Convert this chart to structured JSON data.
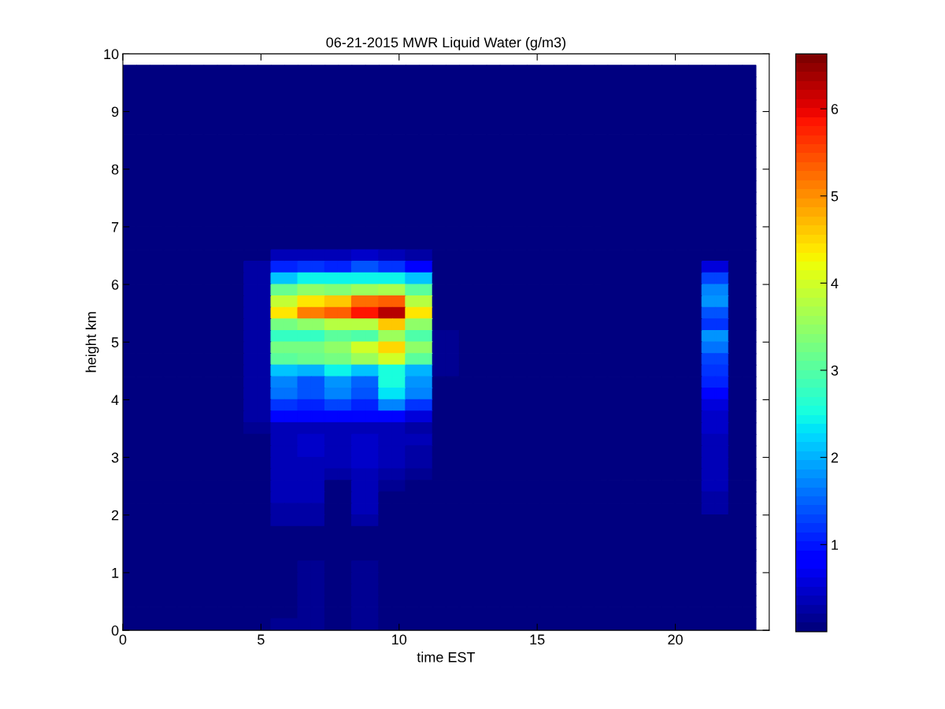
{
  "chart_data": {
    "type": "heatmap",
    "title": "06-21-2015 MWR Liquid Water (g/m3)",
    "xlabel": "time EST",
    "ylabel": "height km",
    "x": [
      0.24,
      0.73,
      1.22,
      1.71,
      2.19,
      2.68,
      3.17,
      3.66,
      4.14,
      4.63,
      5.12,
      5.61,
      6.09,
      6.58,
      7.07,
      7.56,
      8.04,
      8.53,
      9.02,
      9.51,
      9.99,
      10.48,
      10.97,
      11.46,
      11.94,
      12.43,
      12.92,
      13.41,
      13.89,
      14.38,
      14.87,
      15.36,
      15.84,
      16.33,
      16.82,
      17.31,
      17.79,
      18.28,
      18.77,
      19.26,
      19.74,
      20.23,
      20.72,
      21.21,
      21.69,
      22.18,
      22.67
    ],
    "y": [
      9.7,
      9.5,
      9.3,
      9.1,
      8.9,
      8.7,
      8.5,
      8.3,
      8.1,
      7.9,
      7.7,
      7.5,
      7.3,
      7.1,
      6.9,
      6.7,
      6.5,
      6.3,
      6.1,
      5.9,
      5.7,
      5.5,
      5.3,
      5.1,
      4.9,
      4.7,
      4.5,
      4.3,
      4.1,
      3.9,
      3.7,
      3.5,
      3.3,
      3.1,
      2.9,
      2.7,
      2.5,
      2.3,
      2.1,
      1.9,
      1.7,
      1.5,
      1.3,
      1.1,
      0.9,
      0.7,
      0.5,
      0.3,
      0.1
    ],
    "cells": [
      [
        0.1,
        0.1,
        0.1,
        0.1,
        0.1,
        0.1,
        0.1,
        0.1,
        0.1,
        0.1,
        0.1,
        0.1,
        0.1,
        0.1,
        0.1,
        0.1,
        0.1,
        0.1,
        0.1,
        0.1,
        0.1,
        0.1,
        0.1,
        0.1,
        0.1,
        0.1,
        0.1,
        0.1,
        0.1,
        0.1,
        0.1,
        0.1,
        0.1,
        0.1,
        0.1,
        0.1,
        0.1,
        0.1,
        0.1,
        0.1,
        0.1,
        0.1,
        0.1,
        0.1,
        0.1,
        0.1,
        0.1
      ],
      [
        0.1,
        0.1,
        0.1,
        0.1,
        0.1,
        0.1,
        0.1,
        0.1,
        0.1,
        0.1,
        0.1,
        0.1,
        0.1,
        0.1,
        0.1,
        0.1,
        0.1,
        0.1,
        0.1,
        0.1,
        0.1,
        0.1,
        0.1,
        0.1,
        0.1,
        0.1,
        0.1,
        0.1,
        0.1,
        0.1,
        0.1,
        0.1,
        0.1,
        0.1,
        0.1,
        0.1,
        0.1,
        0.1,
        0.1,
        0.1,
        0.1,
        0.1,
        0.1,
        0.1,
        0.1,
        0.1,
        0.1
      ],
      [
        0.1,
        0.1,
        0.1,
        0.1,
        0.1,
        0.1,
        0.1,
        0.1,
        0.1,
        0.1,
        0.1,
        0.1,
        0.1,
        0.1,
        0.1,
        0.1,
        0.1,
        0.1,
        0.1,
        0.1,
        0.1,
        0.1,
        0.1,
        0.1,
        0.1,
        0.1,
        0.1,
        0.1,
        0.1,
        0.1,
        0.1,
        0.1,
        0.1,
        0.1,
        0.1,
        0.1,
        0.1,
        0.1,
        0.1,
        0.1,
        0.1,
        0.1,
        0.1,
        0.1,
        0.1,
        0.1,
        0.1
      ],
      [
        0.1,
        0.1,
        0.1,
        0.1,
        0.1,
        0.1,
        0.1,
        0.1,
        0.1,
        0.1,
        0.1,
        0.1,
        0.1,
        0.1,
        0.1,
        0.1,
        0.1,
        0.1,
        0.1,
        0.1,
        0.1,
        0.1,
        0.1,
        0.1,
        0.1,
        0.1,
        0.1,
        0.1,
        0.1,
        0.1,
        0.1,
        0.1,
        0.1,
        0.1,
        0.1,
        0.1,
        0.1,
        0.1,
        0.1,
        0.1,
        0.1,
        0.1,
        0.1,
        0.1,
        0.1,
        0.1,
        0.1
      ],
      [
        0.1,
        0.1,
        0.1,
        0.1,
        0.1,
        0.1,
        0.1,
        0.1,
        0.1,
        0.1,
        0.1,
        0.1,
        0.1,
        0.1,
        0.1,
        0.1,
        0.1,
        0.1,
        0.1,
        0.1,
        0.1,
        0.1,
        0.1,
        0.1,
        0.1,
        0.1,
        0.1,
        0.1,
        0.1,
        0.1,
        0.1,
        0.1,
        0.1,
        0.1,
        0.1,
        0.1,
        0.1,
        0.1,
        0.1,
        0.1,
        0.1,
        0.1,
        0.1,
        0.1,
        0.1,
        0.1,
        0.1
      ],
      [
        0.1,
        0.1,
        0.1,
        0.1,
        0.1,
        0.1,
        0.1,
        0.1,
        0.1,
        0.1,
        0.1,
        0.1,
        0.1,
        0.1,
        0.1,
        0.1,
        0.1,
        0.1,
        0.1,
        0.1,
        0.1,
        0.1,
        0.1,
        0.1,
        0.1,
        0.1,
        0.1,
        0.1,
        0.1,
        0.1,
        0.1,
        0.1,
        0.1,
        0.1,
        0.1,
        0.1,
        0.1,
        0.1,
        0.1,
        0.1,
        0.1,
        0.1,
        0.1,
        0.1,
        0.1,
        0.1,
        0.1
      ],
      [
        0.1,
        0.1,
        0.1,
        0.1,
        0.1,
        0.1,
        0.1,
        0.1,
        0.1,
        0.1,
        0.1,
        0.1,
        0.1,
        0.1,
        0.1,
        0.1,
        0.1,
        0.1,
        0.1,
        0.1,
        0.1,
        0.1,
        0.1,
        0.1,
        0.1,
        0.1,
        0.1,
        0.1,
        0.1,
        0.1,
        0.1,
        0.1,
        0.1,
        0.1,
        0.1,
        0.1,
        0.1,
        0.1,
        0.1,
        0.1,
        0.1,
        0.1,
        0.1,
        0.1,
        0.1,
        0.1,
        0.1
      ],
      [
        0.1,
        0.1,
        0.1,
        0.1,
        0.1,
        0.1,
        0.1,
        0.1,
        0.1,
        0.1,
        0.1,
        0.1,
        0.1,
        0.1,
        0.1,
        0.1,
        0.1,
        0.1,
        0.1,
        0.1,
        0.1,
        0.1,
        0.1,
        0.1,
        0.1,
        0.1,
        0.1,
        0.1,
        0.1,
        0.1,
        0.1,
        0.1,
        0.1,
        0.1,
        0.1,
        0.1,
        0.1,
        0.1,
        0.1,
        0.1,
        0.1,
        0.1,
        0.1,
        0.1,
        0.1,
        0.1,
        0.1
      ],
      [
        0.1,
        0.1,
        0.1,
        0.1,
        0.1,
        0.1,
        0.1,
        0.1,
        0.1,
        0.1,
        0.1,
        0.1,
        0.1,
        0.1,
        0.1,
        0.1,
        0.1,
        0.1,
        0.1,
        0.1,
        0.1,
        0.1,
        0.1,
        0.1,
        0.1,
        0.1,
        0.1,
        0.1,
        0.1,
        0.1,
        0.1,
        0.1,
        0.1,
        0.1,
        0.1,
        0.1,
        0.1,
        0.1,
        0.1,
        0.1,
        0.1,
        0.1,
        0.1,
        0.1,
        0.1,
        0.1,
        0.1
      ],
      [
        0.1,
        0.1,
        0.1,
        0.1,
        0.1,
        0.1,
        0.1,
        0.1,
        0.1,
        0.1,
        0.1,
        0.1,
        0.1,
        0.1,
        0.1,
        0.1,
        0.1,
        0.1,
        0.1,
        0.1,
        0.1,
        0.1,
        0.1,
        0.1,
        0.1,
        0.1,
        0.1,
        0.1,
        0.1,
        0.1,
        0.1,
        0.1,
        0.1,
        0.1,
        0.1,
        0.1,
        0.1,
        0.1,
        0.1,
        0.1,
        0.1,
        0.1,
        0.1,
        0.1,
        0.1,
        0.1,
        0.1
      ],
      [
        0.1,
        0.1,
        0.1,
        0.1,
        0.1,
        0.1,
        0.1,
        0.1,
        0.1,
        0.1,
        0.1,
        0.1,
        0.1,
        0.1,
        0.1,
        0.1,
        0.1,
        0.1,
        0.1,
        0.1,
        0.1,
        0.1,
        0.1,
        0.1,
        0.1,
        0.1,
        0.1,
        0.1,
        0.1,
        0.1,
        0.1,
        0.1,
        0.1,
        0.1,
        0.1,
        0.1,
        0.1,
        0.1,
        0.1,
        0.1,
        0.1,
        0.1,
        0.1,
        0.1,
        0.1,
        0.1,
        0.1
      ],
      [
        0.1,
        0.1,
        0.1,
        0.1,
        0.1,
        0.1,
        0.1,
        0.1,
        0.1,
        0.1,
        0.1,
        0.1,
        0.1,
        0.1,
        0.1,
        0.1,
        0.1,
        0.1,
        0.1,
        0.1,
        0.1,
        0.1,
        0.1,
        0.1,
        0.1,
        0.1,
        0.1,
        0.1,
        0.1,
        0.1,
        0.1,
        0.1,
        0.1,
        0.1,
        0.1,
        0.1,
        0.1,
        0.1,
        0.1,
        0.1,
        0.1,
        0.1,
        0.1,
        0.1,
        0.1,
        0.1,
        0.1
      ],
      [
        0.1,
        0.1,
        0.1,
        0.1,
        0.1,
        0.1,
        0.1,
        0.1,
        0.1,
        0.1,
        0.1,
        0.1,
        0.1,
        0.1,
        0.1,
        0.1,
        0.1,
        0.1,
        0.1,
        0.1,
        0.1,
        0.1,
        0.1,
        0.1,
        0.1,
        0.1,
        0.1,
        0.1,
        0.1,
        0.1,
        0.1,
        0.1,
        0.1,
        0.1,
        0.1,
        0.1,
        0.1,
        0.1,
        0.1,
        0.1,
        0.1,
        0.1,
        0.1,
        0.1,
        0.1,
        0.1,
        0.1
      ],
      [
        0.1,
        0.1,
        0.1,
        0.1,
        0.1,
        0.1,
        0.1,
        0.1,
        0.1,
        0.1,
        0.1,
        0.1,
        0.1,
        0.1,
        0.1,
        0.1,
        0.1,
        0.1,
        0.1,
        0.1,
        0.1,
        0.1,
        0.1,
        0.1,
        0.1,
        0.1,
        0.1,
        0.1,
        0.1,
        0.1,
        0.1,
        0.1,
        0.1,
        0.1,
        0.1,
        0.1,
        0.1,
        0.1,
        0.1,
        0.1,
        0.1,
        0.1,
        0.1,
        0.1,
        0.1,
        0.1,
        0.1
      ],
      [
        0.1,
        0.1,
        0.1,
        0.1,
        0.1,
        0.1,
        0.1,
        0.1,
        0.1,
        0.1,
        0.1,
        0.1,
        0.1,
        0.1,
        0.1,
        0.1,
        0.1,
        0.1,
        0.1,
        0.1,
        0.1,
        0.1,
        0.1,
        0.1,
        0.1,
        0.1,
        0.1,
        0.1,
        0.1,
        0.1,
        0.1,
        0.1,
        0.1,
        0.1,
        0.1,
        0.1,
        0.1,
        0.1,
        0.1,
        0.1,
        0.1,
        0.1,
        0.1,
        0.1,
        0.1,
        0.1,
        0.1
      ],
      [
        0.1,
        0.1,
        0.1,
        0.1,
        0.1,
        0.1,
        0.1,
        0.1,
        0.1,
        0.1,
        0.1,
        0.1,
        0.1,
        0.1,
        0.1,
        0.1,
        0.1,
        0.1,
        0.1,
        0.1,
        0.1,
        0.1,
        0.1,
        0.1,
        0.1,
        0.1,
        0.1,
        0.1,
        0.1,
        0.1,
        0.1,
        0.1,
        0.1,
        0.1,
        0.1,
        0.1,
        0.1,
        0.1,
        0.1,
        0.1,
        0.1,
        0.1,
        0.1,
        0.1,
        0.1,
        0.1,
        0.1
      ],
      [
        0.1,
        0.1,
        0.1,
        0.1,
        0.1,
        0.1,
        0.1,
        0.1,
        0.1,
        0.1,
        0.1,
        0.35,
        0.35,
        0.35,
        0.35,
        0.35,
        0.35,
        0.45,
        0.45,
        0.35,
        0.35,
        0.3,
        0.3,
        0.1,
        0.1,
        0.1,
        0.1,
        0.1,
        0.1,
        0.1,
        0.1,
        0.1,
        0.1,
        0.1,
        0.1,
        0.1,
        0.1,
        0.1,
        0.1,
        0.1,
        0.1,
        0.1,
        0.1,
        0.1,
        0.1,
        0.1,
        0.1
      ],
      [
        0.1,
        0.1,
        0.1,
        0.1,
        0.1,
        0.1,
        0.1,
        0.1,
        0.1,
        0.25,
        0.25,
        1.1,
        1.1,
        1.2,
        1.2,
        1.05,
        1.05,
        1.4,
        1.4,
        1.15,
        1.15,
        0.8,
        0.8,
        0.1,
        0.1,
        0.1,
        0.1,
        0.1,
        0.1,
        0.1,
        0.1,
        0.1,
        0.1,
        0.1,
        0.1,
        0.1,
        0.1,
        0.1,
        0.1,
        0.1,
        0.1,
        0.1,
        0.1,
        0.6,
        0.6,
        0.1,
        0.1
      ],
      [
        0.1,
        0.1,
        0.1,
        0.1,
        0.1,
        0.1,
        0.1,
        0.1,
        0.1,
        0.25,
        0.25,
        2.15,
        2.15,
        2.45,
        2.45,
        2.45,
        2.45,
        2.45,
        2.45,
        2.45,
        2.45,
        2.1,
        2.1,
        0.1,
        0.1,
        0.1,
        0.1,
        0.1,
        0.1,
        0.1,
        0.1,
        0.1,
        0.1,
        0.1,
        0.1,
        0.1,
        0.1,
        0.1,
        0.1,
        0.1,
        0.1,
        0.1,
        0.1,
        1.3,
        1.3,
        0.1,
        0.1
      ],
      [
        0.1,
        0.1,
        0.1,
        0.1,
        0.1,
        0.1,
        0.1,
        0.1,
        0.1,
        0.25,
        0.25,
        3.15,
        3.15,
        3.45,
        3.45,
        3.35,
        3.35,
        3.55,
        3.55,
        3.65,
        3.65,
        3.05,
        3.05,
        0.1,
        0.1,
        0.1,
        0.1,
        0.1,
        0.1,
        0.1,
        0.1,
        0.1,
        0.1,
        0.1,
        0.1,
        0.1,
        0.1,
        0.1,
        0.1,
        0.1,
        0.1,
        0.1,
        0.1,
        1.7,
        1.7,
        0.1,
        0.1
      ],
      [
        0.1,
        0.1,
        0.1,
        0.1,
        0.1,
        0.1,
        0.1,
        0.1,
        0.1,
        0.25,
        0.25,
        3.85,
        3.85,
        4.45,
        4.45,
        4.6,
        4.6,
        5.25,
        5.25,
        5.3,
        5.3,
        3.75,
        3.75,
        0.1,
        0.1,
        0.1,
        0.1,
        0.1,
        0.1,
        0.1,
        0.1,
        0.1,
        0.1,
        0.1,
        0.1,
        0.1,
        0.1,
        0.1,
        0.1,
        0.1,
        0.1,
        0.1,
        0.1,
        1.8,
        1.8,
        0.1,
        0.1
      ],
      [
        0.1,
        0.1,
        0.1,
        0.1,
        0.1,
        0.1,
        0.1,
        0.1,
        0.1,
        0.25,
        0.25,
        4.45,
        4.45,
        5.1,
        5.1,
        5.35,
        5.35,
        5.85,
        5.85,
        6.25,
        6.25,
        4.4,
        4.4,
        0.1,
        0.1,
        0.1,
        0.1,
        0.1,
        0.1,
        0.1,
        0.1,
        0.1,
        0.1,
        0.1,
        0.1,
        0.1,
        0.1,
        0.1,
        0.1,
        0.1,
        0.1,
        0.1,
        0.1,
        1.45,
        1.45,
        0.1,
        0.1
      ],
      [
        0.1,
        0.1,
        0.1,
        0.1,
        0.1,
        0.1,
        0.1,
        0.1,
        0.1,
        0.25,
        0.25,
        3.3,
        3.3,
        3.5,
        3.5,
        3.75,
        3.75,
        3.75,
        3.75,
        4.6,
        4.6,
        3.5,
        3.5,
        0.1,
        0.1,
        0.1,
        0.1,
        0.1,
        0.1,
        0.1,
        0.1,
        0.1,
        0.1,
        0.1,
        0.1,
        0.1,
        0.1,
        0.1,
        0.1,
        0.1,
        0.1,
        0.1,
        0.1,
        1.2,
        1.2,
        0.1,
        0.1
      ],
      [
        0.1,
        0.1,
        0.1,
        0.1,
        0.1,
        0.1,
        0.1,
        0.1,
        0.1,
        0.25,
        0.25,
        2.7,
        2.7,
        2.7,
        2.7,
        3.1,
        3.1,
        2.95,
        2.95,
        3.6,
        3.6,
        2.95,
        2.95,
        0.2,
        0.2,
        0.1,
        0.1,
        0.1,
        0.1,
        0.1,
        0.1,
        0.1,
        0.1,
        0.1,
        0.1,
        0.1,
        0.1,
        0.1,
        0.1,
        0.1,
        0.1,
        0.1,
        0.1,
        1.8,
        1.8,
        0.1,
        0.1
      ],
      [
        0.1,
        0.1,
        0.1,
        0.1,
        0.1,
        0.1,
        0.1,
        0.1,
        0.1,
        0.25,
        0.25,
        3.25,
        3.25,
        3.25,
        3.25,
        3.45,
        3.45,
        3.95,
        3.95,
        4.5,
        4.5,
        3.45,
        3.45,
        0.2,
        0.2,
        0.1,
        0.1,
        0.1,
        0.1,
        0.1,
        0.1,
        0.1,
        0.1,
        0.1,
        0.1,
        0.1,
        0.1,
        0.1,
        0.1,
        0.1,
        0.1,
        0.1,
        0.1,
        1.6,
        1.6,
        0.1,
        0.1
      ],
      [
        0.1,
        0.1,
        0.1,
        0.1,
        0.1,
        0.1,
        0.1,
        0.1,
        0.1,
        0.25,
        0.25,
        3.1,
        3.1,
        3.2,
        3.2,
        3.3,
        3.3,
        3.6,
        3.6,
        4.0,
        4.0,
        3.1,
        3.1,
        0.2,
        0.2,
        0.1,
        0.1,
        0.1,
        0.1,
        0.1,
        0.1,
        0.1,
        0.1,
        0.1,
        0.1,
        0.1,
        0.1,
        0.1,
        0.1,
        0.1,
        0.1,
        0.1,
        0.1,
        1.3,
        1.3,
        0.1,
        0.1
      ],
      [
        0.1,
        0.1,
        0.1,
        0.1,
        0.1,
        0.1,
        0.1,
        0.1,
        0.1,
        0.25,
        0.25,
        2.15,
        2.15,
        2.05,
        2.05,
        2.4,
        2.4,
        2.1,
        2.1,
        2.5,
        2.5,
        2.0,
        2.0,
        0.15,
        0.15,
        0.1,
        0.1,
        0.1,
        0.1,
        0.1,
        0.1,
        0.1,
        0.1,
        0.1,
        0.1,
        0.1,
        0.1,
        0.1,
        0.1,
        0.1,
        0.1,
        0.1,
        0.1,
        1.15,
        1.15,
        0.1,
        0.1
      ],
      [
        0.1,
        0.1,
        0.1,
        0.1,
        0.1,
        0.1,
        0.1,
        0.1,
        0.1,
        0.25,
        0.25,
        1.7,
        1.7,
        1.45,
        1.45,
        1.85,
        1.85,
        1.55,
        1.55,
        2.5,
        2.5,
        1.85,
        1.85,
        0.1,
        0.1,
        0.1,
        0.1,
        0.1,
        0.1,
        0.1,
        0.1,
        0.1,
        0.1,
        0.1,
        0.1,
        0.1,
        0.1,
        0.1,
        0.1,
        0.1,
        0.1,
        0.1,
        0.1,
        1.05,
        1.05,
        0.1,
        0.1
      ],
      [
        0.1,
        0.1,
        0.1,
        0.1,
        0.1,
        0.1,
        0.1,
        0.1,
        0.1,
        0.25,
        0.25,
        1.65,
        1.65,
        1.4,
        1.4,
        1.75,
        1.75,
        1.45,
        1.45,
        2.35,
        2.35,
        1.75,
        1.75,
        0.1,
        0.1,
        0.1,
        0.1,
        0.1,
        0.1,
        0.1,
        0.1,
        0.1,
        0.1,
        0.1,
        0.1,
        0.1,
        0.1,
        0.1,
        0.1,
        0.1,
        0.1,
        0.1,
        0.1,
        0.85,
        0.85,
        0.1,
        0.1
      ],
      [
        0.1,
        0.1,
        0.1,
        0.1,
        0.1,
        0.1,
        0.1,
        0.1,
        0.1,
        0.25,
        0.25,
        1.2,
        1.2,
        1.1,
        1.1,
        1.25,
        1.25,
        1.1,
        1.1,
        1.7,
        1.7,
        1.15,
        1.15,
        0.1,
        0.1,
        0.1,
        0.1,
        0.1,
        0.1,
        0.1,
        0.1,
        0.1,
        0.1,
        0.1,
        0.1,
        0.1,
        0.1,
        0.1,
        0.1,
        0.1,
        0.1,
        0.1,
        0.1,
        0.6,
        0.6,
        0.1,
        0.1
      ],
      [
        0.1,
        0.1,
        0.1,
        0.1,
        0.1,
        0.1,
        0.1,
        0.1,
        0.1,
        0.25,
        0.25,
        0.85,
        0.85,
        0.85,
        0.85,
        0.85,
        0.85,
        0.85,
        0.85,
        0.9,
        0.9,
        0.6,
        0.6,
        0.1,
        0.1,
        0.1,
        0.1,
        0.1,
        0.1,
        0.1,
        0.1,
        0.1,
        0.1,
        0.1,
        0.1,
        0.1,
        0.1,
        0.1,
        0.1,
        0.1,
        0.1,
        0.1,
        0.1,
        0.5,
        0.5,
        0.1,
        0.1
      ],
      [
        0.1,
        0.1,
        0.1,
        0.1,
        0.1,
        0.1,
        0.1,
        0.1,
        0.1,
        0.15,
        0.15,
        0.4,
        0.4,
        0.4,
        0.4,
        0.4,
        0.4,
        0.4,
        0.4,
        0.4,
        0.4,
        0.3,
        0.3,
        0.1,
        0.1,
        0.1,
        0.1,
        0.1,
        0.1,
        0.1,
        0.1,
        0.1,
        0.1,
        0.1,
        0.1,
        0.1,
        0.1,
        0.1,
        0.1,
        0.1,
        0.1,
        0.1,
        0.1,
        0.45,
        0.45,
        0.1,
        0.1
      ],
      [
        0.1,
        0.1,
        0.1,
        0.1,
        0.1,
        0.1,
        0.1,
        0.1,
        0.1,
        0.1,
        0.1,
        0.4,
        0.4,
        0.45,
        0.45,
        0.4,
        0.4,
        0.45,
        0.45,
        0.4,
        0.4,
        0.35,
        0.35,
        0.1,
        0.1,
        0.1,
        0.1,
        0.1,
        0.1,
        0.1,
        0.1,
        0.1,
        0.1,
        0.1,
        0.1,
        0.1,
        0.1,
        0.1,
        0.1,
        0.1,
        0.1,
        0.1,
        0.1,
        0.4,
        0.4,
        0.1,
        0.1
      ],
      [
        0.1,
        0.1,
        0.1,
        0.1,
        0.1,
        0.1,
        0.1,
        0.1,
        0.1,
        0.1,
        0.1,
        0.4,
        0.4,
        0.45,
        0.45,
        0.4,
        0.4,
        0.45,
        0.45,
        0.35,
        0.35,
        0.3,
        0.3,
        0.1,
        0.1,
        0.1,
        0.1,
        0.1,
        0.1,
        0.1,
        0.1,
        0.1,
        0.1,
        0.1,
        0.1,
        0.1,
        0.1,
        0.1,
        0.1,
        0.1,
        0.1,
        0.1,
        0.1,
        0.4,
        0.4,
        0.1,
        0.1
      ],
      [
        0.1,
        0.1,
        0.1,
        0.1,
        0.1,
        0.1,
        0.1,
        0.1,
        0.1,
        0.1,
        0.1,
        0.4,
        0.4,
        0.4,
        0.4,
        0.35,
        0.35,
        0.45,
        0.45,
        0.35,
        0.35,
        0.3,
        0.3,
        0.1,
        0.1,
        0.1,
        0.1,
        0.1,
        0.1,
        0.1,
        0.1,
        0.1,
        0.1,
        0.1,
        0.1,
        0.1,
        0.1,
        0.1,
        0.1,
        0.1,
        0.1,
        0.1,
        0.1,
        0.35,
        0.35,
        0.1,
        0.1
      ],
      [
        0.1,
        0.1,
        0.1,
        0.1,
        0.1,
        0.1,
        0.1,
        0.1,
        0.1,
        0.1,
        0.1,
        0.35,
        0.35,
        0.4,
        0.4,
        0.3,
        0.3,
        0.4,
        0.4,
        0.3,
        0.3,
        0.2,
        0.2,
        0.1,
        0.1,
        0.1,
        0.1,
        0.1,
        0.1,
        0.1,
        0.1,
        0.1,
        0.1,
        0.1,
        0.1,
        0.1,
        0.1,
        0.1,
        0.1,
        0.1,
        0.1,
        0.1,
        0.1,
        0.35,
        0.35,
        0.1,
        0.1
      ],
      [
        0.1,
        0.1,
        0.1,
        0.1,
        0.1,
        0.1,
        0.1,
        0.1,
        0.1,
        0.1,
        0.1,
        0.35,
        0.35,
        0.35,
        0.35,
        0.1,
        0.1,
        0.4,
        0.4,
        0.2,
        0.2,
        0.1,
        0.1,
        0.1,
        0.1,
        0.1,
        0.1,
        0.1,
        0.1,
        0.1,
        0.1,
        0.1,
        0.1,
        0.1,
        0.1,
        0.1,
        0.1,
        0.1,
        0.1,
        0.1,
        0.1,
        0.1,
        0.1,
        0.35,
        0.35,
        0.1,
        0.1
      ],
      [
        0.1,
        0.1,
        0.1,
        0.1,
        0.1,
        0.1,
        0.1,
        0.1,
        0.1,
        0.1,
        0.1,
        0.35,
        0.35,
        0.35,
        0.35,
        0.1,
        0.1,
        0.35,
        0.35,
        0.1,
        0.1,
        0.1,
        0.1,
        0.1,
        0.1,
        0.1,
        0.1,
        0.1,
        0.1,
        0.1,
        0.1,
        0.1,
        0.1,
        0.1,
        0.1,
        0.1,
        0.1,
        0.1,
        0.1,
        0.1,
        0.1,
        0.1,
        0.1,
        0.3,
        0.3,
        0.1,
        0.1
      ],
      [
        0.1,
        0.1,
        0.1,
        0.1,
        0.1,
        0.1,
        0.1,
        0.1,
        0.1,
        0.1,
        0.1,
        0.3,
        0.3,
        0.3,
        0.3,
        0.1,
        0.1,
        0.35,
        0.35,
        0.1,
        0.1,
        0.1,
        0.1,
        0.1,
        0.1,
        0.1,
        0.1,
        0.1,
        0.1,
        0.1,
        0.1,
        0.1,
        0.1,
        0.1,
        0.1,
        0.1,
        0.1,
        0.1,
        0.1,
        0.1,
        0.1,
        0.1,
        0.1,
        0.3,
        0.3,
        0.1,
        0.1
      ],
      [
        0.1,
        0.1,
        0.1,
        0.1,
        0.1,
        0.1,
        0.1,
        0.1,
        0.1,
        0.1,
        0.1,
        0.25,
        0.25,
        0.25,
        0.25,
        0.1,
        0.1,
        0.3,
        0.3,
        0.1,
        0.1,
        0.1,
        0.1,
        0.1,
        0.1,
        0.1,
        0.1,
        0.1,
        0.1,
        0.1,
        0.1,
        0.1,
        0.1,
        0.1,
        0.1,
        0.1,
        0.1,
        0.1,
        0.1,
        0.1,
        0.1,
        0.1,
        0.1,
        0.1,
        0.1,
        0.1,
        0.1
      ],
      [
        0.1,
        0.1,
        0.1,
        0.1,
        0.1,
        0.1,
        0.1,
        0.1,
        0.1,
        0.1,
        0.1,
        0.1,
        0.1,
        0.1,
        0.1,
        0.1,
        0.1,
        0.1,
        0.1,
        0.1,
        0.1,
        0.1,
        0.1,
        0.1,
        0.1,
        0.1,
        0.1,
        0.1,
        0.1,
        0.1,
        0.1,
        0.1,
        0.1,
        0.1,
        0.1,
        0.1,
        0.1,
        0.1,
        0.1,
        0.1,
        0.1,
        0.1,
        0.1,
        0.1,
        0.1,
        0.1,
        0.1
      ],
      [
        0.1,
        0.1,
        0.1,
        0.1,
        0.1,
        0.1,
        0.1,
        0.1,
        0.1,
        0.1,
        0.1,
        0.1,
        0.1,
        0.1,
        0.1,
        0.1,
        0.1,
        0.1,
        0.1,
        0.1,
        0.1,
        0.1,
        0.1,
        0.1,
        0.1,
        0.1,
        0.1,
        0.1,
        0.1,
        0.1,
        0.1,
        0.1,
        0.1,
        0.1,
        0.1,
        0.1,
        0.1,
        0.1,
        0.1,
        0.1,
        0.1,
        0.1,
        0.1,
        0.1,
        0.1,
        0.1,
        0.1
      ],
      [
        0.1,
        0.1,
        0.1,
        0.1,
        0.1,
        0.1,
        0.1,
        0.1,
        0.1,
        0.1,
        0.1,
        0.1,
        0.1,
        0.1,
        0.1,
        0.1,
        0.1,
        0.1,
        0.1,
        0.1,
        0.1,
        0.1,
        0.1,
        0.1,
        0.1,
        0.1,
        0.1,
        0.1,
        0.1,
        0.1,
        0.1,
        0.1,
        0.1,
        0.1,
        0.1,
        0.1,
        0.1,
        0.1,
        0.1,
        0.1,
        0.1,
        0.1,
        0.1,
        0.1,
        0.1,
        0.1,
        0.1
      ],
      [
        0.1,
        0.1,
        0.1,
        0.1,
        0.1,
        0.1,
        0.1,
        0.1,
        0.1,
        0.1,
        0.1,
        0.1,
        0.1,
        0.15,
        0.15,
        0.1,
        0.1,
        0.15,
        0.15,
        0.1,
        0.1,
        0.1,
        0.1,
        0.1,
        0.1,
        0.1,
        0.1,
        0.1,
        0.1,
        0.1,
        0.1,
        0.1,
        0.1,
        0.1,
        0.1,
        0.1,
        0.1,
        0.1,
        0.1,
        0.1,
        0.1,
        0.1,
        0.1,
        0.1,
        0.1,
        0.1,
        0.1
      ],
      [
        0.1,
        0.1,
        0.1,
        0.1,
        0.1,
        0.1,
        0.1,
        0.1,
        0.1,
        0.1,
        0.1,
        0.1,
        0.1,
        0.2,
        0.2,
        0.1,
        0.1,
        0.2,
        0.2,
        0.1,
        0.1,
        0.1,
        0.1,
        0.1,
        0.1,
        0.1,
        0.1,
        0.1,
        0.1,
        0.1,
        0.1,
        0.1,
        0.1,
        0.1,
        0.1,
        0.1,
        0.1,
        0.1,
        0.1,
        0.1,
        0.1,
        0.1,
        0.1,
        0.1,
        0.1,
        0.1,
        0.1
      ],
      [
        0.1,
        0.1,
        0.1,
        0.1,
        0.1,
        0.1,
        0.1,
        0.1,
        0.1,
        0.1,
        0.1,
        0.1,
        0.1,
        0.15,
        0.15,
        0.1,
        0.1,
        0.2,
        0.2,
        0.1,
        0.1,
        0.1,
        0.1,
        0.1,
        0.1,
        0.1,
        0.1,
        0.1,
        0.1,
        0.1,
        0.1,
        0.1,
        0.1,
        0.1,
        0.1,
        0.1,
        0.1,
        0.1,
        0.1,
        0.1,
        0.1,
        0.1,
        0.1,
        0.1,
        0.1,
        0.1,
        0.1
      ],
      [
        0.1,
        0.1,
        0.1,
        0.1,
        0.1,
        0.1,
        0.1,
        0.1,
        0.1,
        0.1,
        0.1,
        0.1,
        0.1,
        0.15,
        0.15,
        0.1,
        0.1,
        0.15,
        0.15,
        0.1,
        0.1,
        0.1,
        0.1,
        0.1,
        0.1,
        0.1,
        0.1,
        0.1,
        0.1,
        0.1,
        0.1,
        0.1,
        0.1,
        0.1,
        0.1,
        0.1,
        0.1,
        0.1,
        0.1,
        0.1,
        0.1,
        0.1,
        0.1,
        0.1,
        0.1,
        0.1,
        0.1
      ],
      [
        0.1,
        0.1,
        0.1,
        0.1,
        0.1,
        0.1,
        0.1,
        0.1,
        0.1,
        0.1,
        0.1,
        0.1,
        0.1,
        0.2,
        0.2,
        0.1,
        0.1,
        0.2,
        0.2,
        0.1,
        0.1,
        0.1,
        0.1,
        0.1,
        0.1,
        0.1,
        0.1,
        0.1,
        0.1,
        0.1,
        0.1,
        0.1,
        0.1,
        0.1,
        0.1,
        0.1,
        0.1,
        0.1,
        0.1,
        0.1,
        0.1,
        0.1,
        0.1,
        0.1,
        0.1,
        0.1,
        0.1
      ],
      [
        0.1,
        0.1,
        0.1,
        0.1,
        0.1,
        0.1,
        0.1,
        0.1,
        0.1,
        0.1,
        0.1,
        0.2,
        0.2,
        0.2,
        0.2,
        0.1,
        0.1,
        0.15,
        0.15,
        0.1,
        0.1,
        0.1,
        0.1,
        0.1,
        0.1,
        0.1,
        0.1,
        0.1,
        0.1,
        0.1,
        0.1,
        0.1,
        0.1,
        0.1,
        0.1,
        0.1,
        0.1,
        0.1,
        0.1,
        0.1,
        0.1,
        0.1,
        0.1,
        0.1,
        0.1,
        0.1,
        0.1
      ]
    ],
    "clim": [
      0,
      6.63
    ],
    "cticks": [
      1,
      2,
      3,
      4,
      5,
      6
    ],
    "xlim": [
      0,
      23.4
    ],
    "xticks": [
      0,
      5,
      10,
      15,
      20
    ],
    "ylim": [
      0,
      10
    ],
    "yticks": [
      0,
      1,
      2,
      3,
      4,
      5,
      6,
      7,
      8,
      9,
      10
    ],
    "grid": false
  }
}
